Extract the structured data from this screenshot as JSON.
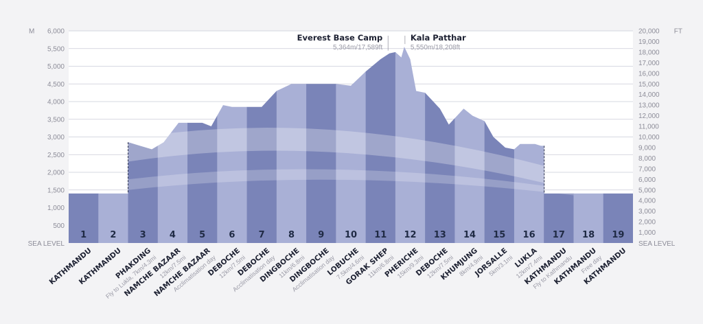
{
  "chart_data": {
    "type": "area",
    "left_axis": {
      "unit": "M",
      "ticks": [
        "6,000",
        "5,500",
        "5,000",
        "4,500",
        "4,000",
        "3,500",
        "3,000",
        "2,500",
        "2,000",
        "1,500",
        "1,000",
        "500"
      ],
      "base_label": "SEA LEVEL",
      "ylim": [
        0,
        6000
      ]
    },
    "right_axis": {
      "unit": "FT",
      "ticks": [
        "20,000",
        "19,000",
        "18,000",
        "17,000",
        "16,000",
        "15,000",
        "14,000",
        "13,000",
        "12,000",
        "11,000",
        "10,000",
        "9,000",
        "8,000",
        "7,000",
        "6,000",
        "5,000",
        "4,000",
        "3,000",
        "2,000",
        "1,000"
      ],
      "base_label": "SEA LEVEL",
      "ylim": [
        0,
        20000
      ]
    },
    "days": [
      {
        "day": "1",
        "place": "KATHMANDU",
        "note": ""
      },
      {
        "day": "2",
        "place": "KATHMANDU",
        "note": ""
      },
      {
        "day": "3",
        "place": "PHAKDING",
        "note": "Fly to Lukla, 7km/4.3mi"
      },
      {
        "day": "4",
        "place": "NAMCHE BAZAAR",
        "note": "12km/7.5mi"
      },
      {
        "day": "5",
        "place": "NAMCHE BAZAAR",
        "note": "Acclimatisation day"
      },
      {
        "day": "6",
        "place": "DEBOCHE",
        "note": "12km/7.5mi"
      },
      {
        "day": "7",
        "place": "DEBOCHE",
        "note": "Acclimatisation day"
      },
      {
        "day": "8",
        "place": "DINGBOCHE",
        "note": "11km/6.8mi"
      },
      {
        "day": "9",
        "place": "DINGBOCHE",
        "note": "Acclimatisation day"
      },
      {
        "day": "10",
        "place": "LOBUCHE",
        "note": "7.5km/4.6mi"
      },
      {
        "day": "11",
        "place": "GORAK SHEP",
        "note": "11km/6.8mi"
      },
      {
        "day": "12",
        "place": "PHERICHE",
        "note": "15km/9.3mi"
      },
      {
        "day": "13",
        "place": "DEBOCHE",
        "note": "12km/7.5mi"
      },
      {
        "day": "14",
        "place": "KHUMJUNG",
        "note": "8km/4.9mi"
      },
      {
        "day": "15",
        "place": "JORSALLE",
        "note": "5km/3.1mi"
      },
      {
        "day": "16",
        "place": "LUKLA",
        "note": "12km/7.4mi"
      },
      {
        "day": "17",
        "place": "KATHMANDU",
        "note": "Fly to Kathmandu"
      },
      {
        "day": "18",
        "place": "KATHMANDU",
        "note": "Free day"
      },
      {
        "day": "19",
        "place": "KATHMANDU",
        "note": ""
      }
    ],
    "profile_x": [
      0,
      1,
      2,
      2.01,
      2.4,
      2.8,
      3.2,
      3.7,
      4.5,
      4.8,
      5.2,
      5.5,
      6.5,
      7,
      7.5,
      8,
      9,
      9.5,
      10,
      10.5,
      10.8,
      11,
      11.2,
      11.3,
      11.5,
      11.7,
      12,
      12.5,
      12.8,
      13.3,
      13.6,
      14,
      14.3,
      14.7,
      15,
      15.2,
      15.7,
      15.9,
      16,
      16.01,
      17,
      18,
      19
    ],
    "profile_y": [
      1400,
      1400,
      1400,
      2850,
      2750,
      2650,
      2850,
      3400,
      3400,
      3300,
      3900,
      3850,
      3850,
      4300,
      4500,
      4500,
      4500,
      4450,
      4850,
      5200,
      5364,
      5400,
      5250,
      5550,
      5200,
      4300,
      4250,
      3800,
      3350,
      3800,
      3600,
      3450,
      3000,
      2700,
      2650,
      2800,
      2800,
      2750,
      2750,
      1400,
      1400,
      1400,
      1400
    ],
    "annotations": [
      {
        "title": "Everest Base Camp",
        "sub": "5,364m/17,589ft",
        "x": 10.8,
        "y": 5364
      },
      {
        "title": "Kala Patthar",
        "sub": "5,550m/18,208ft",
        "x": 11.3,
        "y": 5550
      }
    ],
    "colors": {
      "dark_column": "#7a84b8",
      "light_column": "#a9b0d6",
      "grid": "#c9cbd8",
      "background": "#f3f3f5"
    }
  }
}
